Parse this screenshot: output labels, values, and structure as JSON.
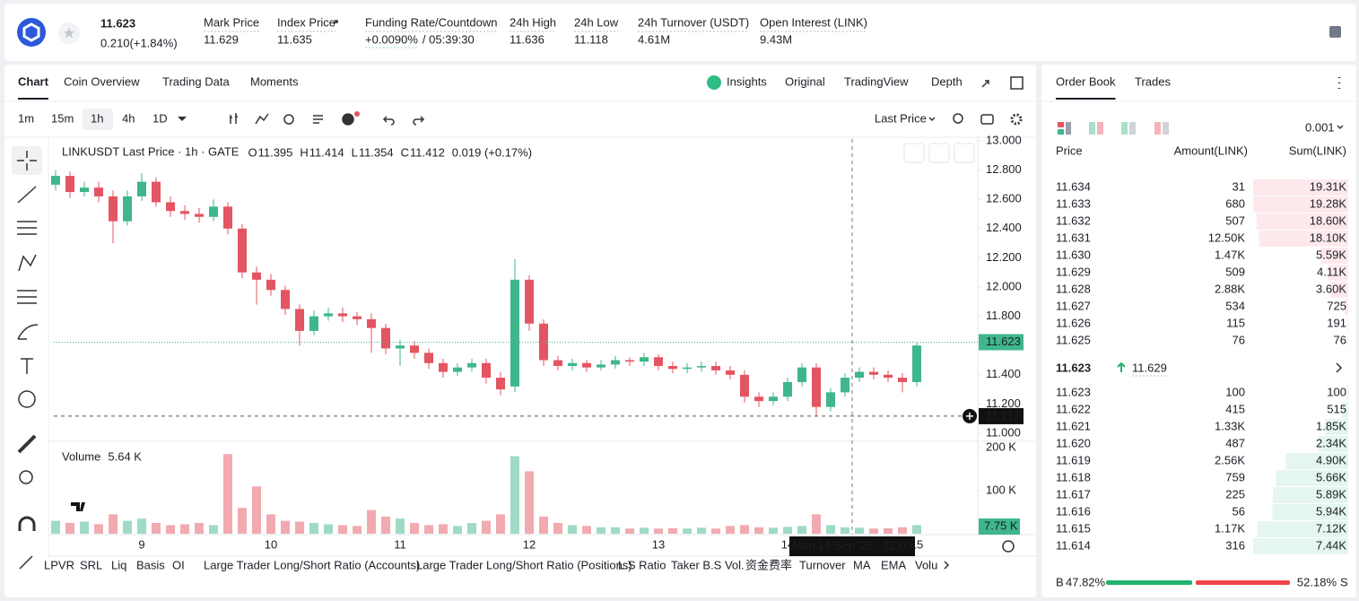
{
  "header": {
    "price": "11.623",
    "change": "0.210(+1.84%)",
    "stats": [
      {
        "label": "Mark Price",
        "value": "11.629"
      },
      {
        "label": "Index Price",
        "value": "11.635"
      },
      {
        "label": "Funding Rate/Countdown",
        "value": "+0.0090%",
        "extra": "/ 05:39:30"
      },
      {
        "label": "24h High",
        "value": "11.636"
      },
      {
        "label": "24h Low",
        "value": "11.118"
      },
      {
        "label": "24h Turnover (USDT)",
        "value": "4.61M"
      },
      {
        "label": "Open Interest (LINK)",
        "value": "9.43M"
      }
    ]
  },
  "chart_tabs": [
    "Chart",
    "Coin Overview",
    "Trading Data",
    "Moments"
  ],
  "view_tabs": [
    "Insights",
    "Original",
    "TradingView",
    "Depth"
  ],
  "intervals": [
    "1m",
    "15m",
    "1h",
    "4h",
    "1D"
  ],
  "price_type": "Last Price",
  "chart_data": {
    "type": "candlestick",
    "legend_title": "LINKUSDT Last Price · 1h · GATE",
    "ohlc": [
      {
        "key": "O",
        "value": "11.395"
      },
      {
        "key": "H",
        "value": "11.414"
      },
      {
        "key": "L",
        "value": "11.354"
      },
      {
        "key": "C",
        "value": "11.412"
      }
    ],
    "legend_change": "0.019 (+0.17%)",
    "up_color": "#3fb68b",
    "down_color": "#e35561",
    "open": [
      12.7,
      12.76,
      12.65,
      12.68,
      12.62,
      12.45,
      12.62,
      12.72,
      12.58,
      12.52,
      12.5,
      12.48,
      12.55,
      12.4,
      12.1,
      12.05,
      11.98,
      11.85,
      11.7,
      11.8,
      11.82,
      11.8,
      11.78,
      11.72,
      11.58,
      11.6,
      11.55,
      11.48,
      11.42,
      11.45,
      11.48,
      11.38,
      11.32,
      12.05,
      11.75,
      11.5,
      11.46,
      11.48,
      11.45,
      11.47,
      11.5,
      11.49,
      11.52,
      11.46,
      11.44,
      11.45,
      11.46,
      11.43,
      11.4,
      11.25,
      11.22,
      11.25,
      11.35,
      11.45,
      11.18,
      11.28,
      11.38,
      11.42,
      11.4,
      11.38,
      11.35
    ],
    "high": [
      12.8,
      12.79,
      12.72,
      12.72,
      12.66,
      12.66,
      12.78,
      12.75,
      12.62,
      12.56,
      12.54,
      12.6,
      12.58,
      12.43,
      12.14,
      12.09,
      12.01,
      11.88,
      11.84,
      11.86,
      11.86,
      11.83,
      11.82,
      11.75,
      11.64,
      11.63,
      11.58,
      11.51,
      11.48,
      11.51,
      11.51,
      11.42,
      12.19,
      12.08,
      11.78,
      11.53,
      11.51,
      11.5,
      11.5,
      11.53,
      11.52,
      11.55,
      11.54,
      11.49,
      11.48,
      11.49,
      11.49,
      11.46,
      11.43,
      11.28,
      11.28,
      11.38,
      11.48,
      11.48,
      11.31,
      11.41,
      11.45,
      11.45,
      11.43,
      11.41,
      11.62
    ],
    "low": [
      12.66,
      12.61,
      12.62,
      12.58,
      12.3,
      12.42,
      12.59,
      12.55,
      12.48,
      12.46,
      12.44,
      12.45,
      12.36,
      12.06,
      11.88,
      11.94,
      11.81,
      11.6,
      11.67,
      11.77,
      11.76,
      11.74,
      11.55,
      11.54,
      11.46,
      11.51,
      11.44,
      11.38,
      11.39,
      11.42,
      11.34,
      11.26,
      11.28,
      11.7,
      11.46,
      11.43,
      11.43,
      11.42,
      11.43,
      11.44,
      11.46,
      11.46,
      11.43,
      11.41,
      11.41,
      11.42,
      11.4,
      11.37,
      11.21,
      11.18,
      11.19,
      11.22,
      11.32,
      11.117,
      11.15,
      11.25,
      11.35,
      11.37,
      11.35,
      11.28,
      11.32
    ],
    "close": [
      12.76,
      12.65,
      12.68,
      12.62,
      12.45,
      12.62,
      12.72,
      12.58,
      12.52,
      12.5,
      12.48,
      12.55,
      12.4,
      12.1,
      12.05,
      11.98,
      11.85,
      11.7,
      11.8,
      11.82,
      11.8,
      11.78,
      11.72,
      11.58,
      11.6,
      11.55,
      11.48,
      11.42,
      11.45,
      11.48,
      11.38,
      11.3,
      12.05,
      11.75,
      11.5,
      11.46,
      11.48,
      11.45,
      11.47,
      11.5,
      11.49,
      11.52,
      11.46,
      11.44,
      11.45,
      11.46,
      11.43,
      11.4,
      11.25,
      11.22,
      11.25,
      11.35,
      11.45,
      11.18,
      11.28,
      11.38,
      11.42,
      11.4,
      11.38,
      11.35,
      11.6
    ],
    "xlim": [
      0,
      64
    ],
    "xticks": [
      {
        "value": 6,
        "label": "9"
      },
      {
        "value": 15,
        "label": "10"
      },
      {
        "value": 24,
        "label": "11"
      },
      {
        "value": 33,
        "label": "12"
      },
      {
        "value": 42,
        "label": "13"
      },
      {
        "value": 51,
        "label": "14"
      },
      {
        "value": 60,
        "label": "15"
      }
    ],
    "ylim": [
      11,
      13
    ],
    "yticks": [
      {
        "value": 11,
        "label": "11.000"
      },
      {
        "value": 11.2,
        "label": "11.200"
      },
      {
        "value": 11.4,
        "label": "11.400"
      },
      {
        "value": 11.6,
        "label": "11.600"
      },
      {
        "value": 11.8,
        "label": "11.800"
      },
      {
        "value": 12,
        "label": "12.000"
      },
      {
        "value": 12.2,
        "label": "12.200"
      },
      {
        "value": 12.4,
        "label": "12.400"
      },
      {
        "value": 12.6,
        "label": "12.600"
      },
      {
        "value": 12.8,
        "label": "12.800"
      },
      {
        "value": 13,
        "label": "13.000"
      }
    ],
    "last_price": {
      "value": 11.623,
      "label": "11.623"
    },
    "crosshair": {
      "price": {
        "value": 11.117,
        "label": "11.117"
      },
      "time": "Mon 14 Sep '26   12:00"
    },
    "volume": {
      "title": "Volume",
      "current": "5.64 K",
      "last": "7.75 K",
      "values": [
        30000,
        25000,
        28000,
        22000,
        45000,
        30000,
        35000,
        25000,
        20000,
        22000,
        25000,
        20000,
        185000,
        60000,
        110000,
        45000,
        30000,
        28000,
        25000,
        22000,
        20000,
        18000,
        55000,
        40000,
        35000,
        25000,
        20000,
        22000,
        18000,
        25000,
        30000,
        45000,
        180000,
        145000,
        40000,
        25000,
        20000,
        18000,
        15000,
        15000,
        12000,
        14000,
        12000,
        13000,
        12000,
        14000,
        12000,
        18000,
        20000,
        15000,
        14000,
        16000,
        18000,
        45000,
        20000,
        15000,
        14000,
        12000,
        13000,
        15000,
        20000
      ],
      "ylim": [
        0,
        200000
      ],
      "yticks": [
        {
          "value": 100000,
          "label": "100 K"
        },
        {
          "value": 200000,
          "label": "200 K"
        }
      ]
    }
  },
  "indicators": [
    "LPVR",
    "SRL",
    "Liq",
    "Basis",
    "OI",
    "Large Trader Long/Short Ratio (Accounts)",
    "Large Trader Long/Short Ratio (Positions)",
    "L.S Ratio",
    "Taker B.S Vol.",
    "资金费率",
    "Turnover",
    "MA",
    "EMA",
    "Volu"
  ],
  "order_book": {
    "tabs": [
      "Order Book",
      "Trades"
    ],
    "precision": "0.001",
    "columns": [
      "Price",
      "Amount(LINK)",
      "Sum(LINK)"
    ],
    "asks": [
      {
        "price": "11.634",
        "amount": 31,
        "sum": {
          "value": 19310,
          "label": "19.31K"
        }
      },
      {
        "price": "11.633",
        "amount": 680,
        "sum": {
          "value": 19280,
          "label": "19.28K"
        }
      },
      {
        "price": "11.632",
        "amount": 507,
        "sum": {
          "value": 18600,
          "label": "18.60K"
        }
      },
      {
        "price": "11.631",
        "amount": {
          "value": 12500,
          "label": "12.50K"
        },
        "sum": {
          "value": 18100,
          "label": "18.10K"
        }
      },
      {
        "price": "11.630",
        "amount": {
          "value": 1470,
          "label": "1.47K"
        },
        "sum": {
          "value": 5590,
          "label": "5.59K"
        }
      },
      {
        "price": "11.629",
        "amount": 509,
        "sum": {
          "value": 4110,
          "label": "4.11K"
        }
      },
      {
        "price": "11.628",
        "amount": {
          "value": 2880,
          "label": "2.88K"
        },
        "sum": {
          "value": 3600,
          "label": "3.60K"
        }
      },
      {
        "price": "11.627",
        "amount": 534,
        "sum": 725
      },
      {
        "price": "11.626",
        "amount": 115,
        "sum": 191
      },
      {
        "price": "11.625",
        "amount": 76,
        "sum": 76
      }
    ],
    "mid": {
      "price": "11.623",
      "mark": "11.629"
    },
    "bids": [
      {
        "price": "11.623",
        "amount": 100,
        "sum": 100
      },
      {
        "price": "11.622",
        "amount": 415,
        "sum": 515
      },
      {
        "price": "11.621",
        "amount": {
          "value": 1330,
          "label": "1.33K"
        },
        "sum": {
          "value": 1850,
          "label": "1.85K"
        }
      },
      {
        "price": "11.620",
        "amount": 487,
        "sum": {
          "value": 2340,
          "label": "2.34K"
        }
      },
      {
        "price": "11.619",
        "amount": {
          "value": 2560,
          "label": "2.56K"
        },
        "sum": {
          "value": 4900,
          "label": "4.90K"
        }
      },
      {
        "price": "11.618",
        "amount": 759,
        "sum": {
          "value": 5660,
          "label": "5.66K"
        }
      },
      {
        "price": "11.617",
        "amount": 225,
        "sum": {
          "value": 5890,
          "label": "5.89K"
        }
      },
      {
        "price": "11.616",
        "amount": 56,
        "sum": {
          "value": 5940,
          "label": "5.94K"
        }
      },
      {
        "price": "11.615",
        "amount": {
          "value": 1170,
          "label": "1.17K"
        },
        "sum": {
          "value": 7120,
          "label": "7.12K"
        }
      },
      {
        "price": "11.614",
        "amount": 316,
        "sum": {
          "value": 7440,
          "label": "7.44K"
        }
      }
    ],
    "buy_key": "B",
    "buy_ratio": {
      "value": 47.82,
      "label": "47.82%"
    },
    "sell_ratio": {
      "value": 52.18,
      "label": "52.18%"
    },
    "sell_key": "S"
  }
}
